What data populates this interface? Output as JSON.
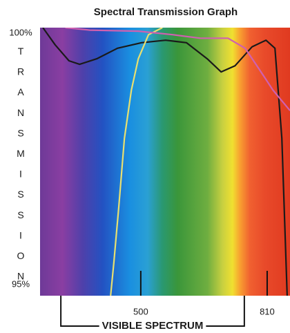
{
  "chart_data": {
    "type": "line",
    "title": "Spectral Transmission Graph",
    "ylabel": "TRANSMISSION",
    "xlim": [
      253,
      866
    ],
    "xticks": [
      500,
      810
    ],
    "ylim": [
      94.78,
      100.11
    ],
    "yticks": [
      {
        "value": 100,
        "label": "100%"
      },
      {
        "value": 95,
        "label": "95%"
      }
    ],
    "annotation": {
      "text": "VISIBLE SPECTRUM",
      "range": [
        304,
        754
      ]
    },
    "series": [
      {
        "name": "black",
        "color": "#1a1a1a",
        "x": [
          260,
          290,
          324,
          350,
          392,
          443,
          502,
          561,
          612,
          663,
          697,
          731,
          773,
          807,
          829,
          846,
          859
        ],
        "values": [
          100.11,
          99.77,
          99.45,
          99.38,
          99.49,
          99.7,
          99.81,
          99.86,
          99.81,
          99.49,
          99.23,
          99.35,
          99.73,
          99.86,
          99.7,
          97.91,
          94.78
        ]
      },
      {
        "name": "yellow",
        "color": "#e8e070",
        "x": [
          426,
          434,
          446,
          460,
          477,
          494,
          519,
          553
        ],
        "values": [
          94.78,
          95.44,
          96.54,
          97.91,
          98.87,
          99.49,
          99.97,
          100.11
        ]
      },
      {
        "name": "pink",
        "color": "#d060b0",
        "x": [
          315,
          375,
          494,
          578,
          646,
          714,
          756,
          790,
          824,
          866
        ],
        "values": [
          100.11,
          100.06,
          100.04,
          99.97,
          99.9,
          99.9,
          99.7,
          99.29,
          98.87,
          98.46
        ]
      }
    ]
  }
}
